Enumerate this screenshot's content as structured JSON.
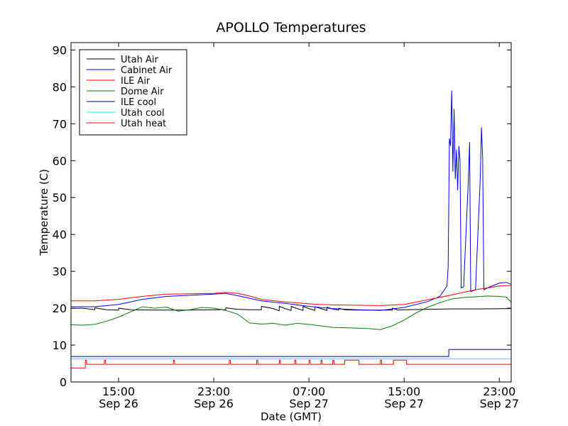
{
  "chart_data": {
    "type": "line",
    "title": "APOLLO Temperatures",
    "xlabel": "Date (GMT)",
    "ylabel": "Temperature (C)",
    "x_unit": "hours since Sep 26 11:00 GMT",
    "xlim": [
      0,
      37
    ],
    "ylim": [
      0,
      92
    ],
    "y_ticks": [
      0,
      10,
      20,
      30,
      40,
      50,
      60,
      70,
      80,
      90
    ],
    "x_ticks": [
      {
        "x": 4,
        "time": "15:00",
        "date": "Sep 26"
      },
      {
        "x": 12,
        "time": "23:00",
        "date": "Sep 26"
      },
      {
        "x": 20,
        "time": "07:00",
        "date": "Sep 27"
      },
      {
        "x": 28,
        "time": "15:00",
        "date": "Sep 27"
      },
      {
        "x": 36,
        "time": "23:00",
        "date": "Sep 27"
      }
    ],
    "legend_position": "top-left",
    "series": [
      {
        "name": "Utah Air",
        "color": "#000000",
        "points": [
          [
            0,
            20.0
          ],
          [
            1,
            20.0
          ],
          [
            2,
            19.6
          ],
          [
            2.01,
            20.1
          ],
          [
            3,
            19.6
          ],
          [
            4,
            19.5
          ],
          [
            4.01,
            20.0
          ],
          [
            5,
            19.6
          ],
          [
            7,
            19.5
          ],
          [
            10,
            19.5
          ],
          [
            12,
            19.6
          ],
          [
            13,
            19.6
          ],
          [
            13.01,
            20.1
          ],
          [
            14,
            19.7
          ],
          [
            15,
            19.6
          ],
          [
            16,
            19.6
          ],
          [
            16.01,
            20.5
          ],
          [
            17,
            19.9
          ],
          [
            17.5,
            19.3
          ],
          [
            17.51,
            20.5
          ],
          [
            18,
            19.9
          ],
          [
            18.5,
            19.4
          ],
          [
            18.51,
            20.5
          ],
          [
            19,
            19.9
          ],
          [
            19.5,
            19.4
          ],
          [
            19.51,
            20.5
          ],
          [
            20,
            19.9
          ],
          [
            20.5,
            19.4
          ],
          [
            20.51,
            20.4
          ],
          [
            21,
            19.9
          ],
          [
            21.5,
            19.4
          ],
          [
            21.51,
            20.3
          ],
          [
            22,
            19.8
          ],
          [
            22.5,
            19.5
          ],
          [
            22.51,
            20.0
          ],
          [
            23,
            19.6
          ],
          [
            24,
            19.5
          ],
          [
            25,
            19.5
          ],
          [
            26,
            19.5
          ],
          [
            27,
            19.5
          ],
          [
            27.01,
            20.0
          ],
          [
            27.5,
            19.5
          ],
          [
            28,
            19.6
          ],
          [
            30,
            19.7
          ],
          [
            32,
            19.8
          ],
          [
            34,
            19.8
          ],
          [
            37,
            19.9
          ]
        ]
      },
      {
        "name": "Cabinet Air",
        "color": "#0000ff",
        "points": [
          [
            0,
            20.4
          ],
          [
            2,
            20.4
          ],
          [
            4,
            21.0
          ],
          [
            6,
            22.4
          ],
          [
            8,
            23.2
          ],
          [
            10,
            23.5
          ],
          [
            12,
            23.8
          ],
          [
            13,
            24.0
          ],
          [
            14,
            23.4
          ],
          [
            16,
            22.0
          ],
          [
            18,
            21.3
          ],
          [
            20,
            20.5
          ],
          [
            22,
            19.9
          ],
          [
            24,
            19.6
          ],
          [
            26,
            19.4
          ],
          [
            28,
            20.2
          ],
          [
            30,
            21.8
          ],
          [
            31,
            23.2
          ],
          [
            31.6,
            26.0
          ],
          [
            31.7,
            31.0
          ],
          [
            31.75,
            46.0
          ],
          [
            31.8,
            66.0
          ],
          [
            31.9,
            64.0
          ],
          [
            32.0,
            79.0
          ],
          [
            32.1,
            57.0
          ],
          [
            32.2,
            74.0
          ],
          [
            32.3,
            55.0
          ],
          [
            32.4,
            63.0
          ],
          [
            32.5,
            52.0
          ],
          [
            32.6,
            64.0
          ],
          [
            32.7,
            60.0
          ],
          [
            32.8,
            25.5
          ],
          [
            33.0,
            25.8
          ],
          [
            33.4,
            55.0
          ],
          [
            33.5,
            65.0
          ],
          [
            33.6,
            24.5
          ],
          [
            34.0,
            25.0
          ],
          [
            34.4,
            55.0
          ],
          [
            34.5,
            69.0
          ],
          [
            34.6,
            61.0
          ],
          [
            34.7,
            25.0
          ],
          [
            35.0,
            25.5
          ],
          [
            36.0,
            26.8
          ],
          [
            36.6,
            27.0
          ],
          [
            37,
            26.5
          ]
        ]
      },
      {
        "name": "ILE Air",
        "color": "#ff0000",
        "points": [
          [
            0,
            22.0
          ],
          [
            2,
            22.0
          ],
          [
            4,
            22.4
          ],
          [
            6,
            23.2
          ],
          [
            8,
            23.8
          ],
          [
            10,
            23.9
          ],
          [
            12,
            24.0
          ],
          [
            13,
            24.3
          ],
          [
            14,
            24.0
          ],
          [
            15,
            23.3
          ],
          [
            16,
            22.4
          ],
          [
            18,
            21.7
          ],
          [
            20,
            21.2
          ],
          [
            21,
            21.0
          ],
          [
            22,
            20.9
          ],
          [
            24,
            20.8
          ],
          [
            26,
            20.7
          ],
          [
            28,
            21.0
          ],
          [
            30,
            22.3
          ],
          [
            32,
            23.6
          ],
          [
            34,
            25.0
          ],
          [
            36,
            26.0
          ],
          [
            37,
            26.2
          ]
        ]
      },
      {
        "name": "Dome Air",
        "color": "#008000",
        "points": [
          [
            0,
            15.5
          ],
          [
            1,
            15.4
          ],
          [
            2,
            15.6
          ],
          [
            3,
            16.5
          ],
          [
            4,
            17.6
          ],
          [
            5,
            19.0
          ],
          [
            6,
            20.4
          ],
          [
            7,
            20.0
          ],
          [
            8,
            20.3
          ],
          [
            9,
            19.2
          ],
          [
            10,
            19.6
          ],
          [
            11,
            20.2
          ],
          [
            12,
            20.0
          ],
          [
            13,
            19.4
          ],
          [
            14,
            18.4
          ],
          [
            15,
            16.0
          ],
          [
            16,
            15.7
          ],
          [
            17,
            15.9
          ],
          [
            18,
            15.4
          ],
          [
            19,
            15.9
          ],
          [
            20,
            15.6
          ],
          [
            21,
            15.2
          ],
          [
            22,
            14.8
          ],
          [
            23,
            14.7
          ],
          [
            24,
            14.6
          ],
          [
            25,
            14.5
          ],
          [
            26,
            14.2
          ],
          [
            27,
            15.2
          ],
          [
            28,
            16.8
          ],
          [
            29,
            18.7
          ],
          [
            30,
            20.3
          ],
          [
            31,
            21.5
          ],
          [
            32,
            22.5
          ],
          [
            33,
            22.9
          ],
          [
            34,
            23.1
          ],
          [
            35,
            23.3
          ],
          [
            36,
            23.2
          ],
          [
            36.6,
            23.0
          ],
          [
            37,
            21.6
          ]
        ]
      },
      {
        "name": "ILE cool",
        "color": "#000080",
        "points": [
          [
            0,
            6.9
          ],
          [
            31.75,
            6.9
          ],
          [
            31.76,
            8.8
          ],
          [
            37,
            8.8
          ]
        ]
      },
      {
        "name": "Utah cool",
        "color": "#00ffff",
        "points": [
          [
            0,
            6.3
          ],
          [
            37,
            6.3
          ]
        ]
      },
      {
        "name": "Utah heat",
        "color": "#ff0000",
        "points": [
          [
            0,
            3.8
          ],
          [
            1.2,
            3.8
          ],
          [
            1.21,
            5.9
          ],
          [
            1.3,
            5.9
          ],
          [
            1.31,
            4.8
          ],
          [
            2.8,
            4.8
          ],
          [
            2.81,
            5.9
          ],
          [
            2.9,
            5.9
          ],
          [
            2.91,
            4.8
          ],
          [
            8.6,
            4.8
          ],
          [
            8.61,
            5.9
          ],
          [
            8.7,
            5.9
          ],
          [
            8.71,
            4.8
          ],
          [
            13.3,
            4.8
          ],
          [
            13.31,
            5.9
          ],
          [
            13.4,
            5.9
          ],
          [
            13.41,
            4.8
          ],
          [
            15.6,
            4.8
          ],
          [
            15.61,
            5.9
          ],
          [
            15.7,
            5.9
          ],
          [
            15.71,
            4.8
          ],
          [
            17.5,
            4.8
          ],
          [
            17.51,
            5.9
          ],
          [
            17.6,
            5.9
          ],
          [
            17.61,
            4.8
          ],
          [
            18.8,
            4.8
          ],
          [
            18.81,
            5.9
          ],
          [
            18.9,
            5.9
          ],
          [
            18.91,
            4.8
          ],
          [
            20.0,
            4.8
          ],
          [
            20.01,
            5.9
          ],
          [
            20.1,
            5.9
          ],
          [
            20.11,
            4.8
          ],
          [
            21.0,
            4.8
          ],
          [
            21.01,
            5.9
          ],
          [
            21.1,
            5.9
          ],
          [
            21.11,
            4.8
          ],
          [
            22.0,
            4.8
          ],
          [
            22.01,
            5.9
          ],
          [
            22.1,
            5.9
          ],
          [
            22.11,
            4.8
          ],
          [
            23.0,
            4.8
          ],
          [
            23.01,
            5.9
          ],
          [
            24.2,
            5.9
          ],
          [
            24.21,
            4.8
          ],
          [
            26.0,
            4.8
          ],
          [
            26.01,
            5.9
          ],
          [
            26.1,
            5.9
          ],
          [
            26.11,
            4.8
          ],
          [
            27.1,
            4.8
          ],
          [
            27.11,
            5.9
          ],
          [
            28.2,
            5.9
          ],
          [
            28.21,
            4.8
          ],
          [
            37,
            4.8
          ]
        ]
      }
    ]
  }
}
